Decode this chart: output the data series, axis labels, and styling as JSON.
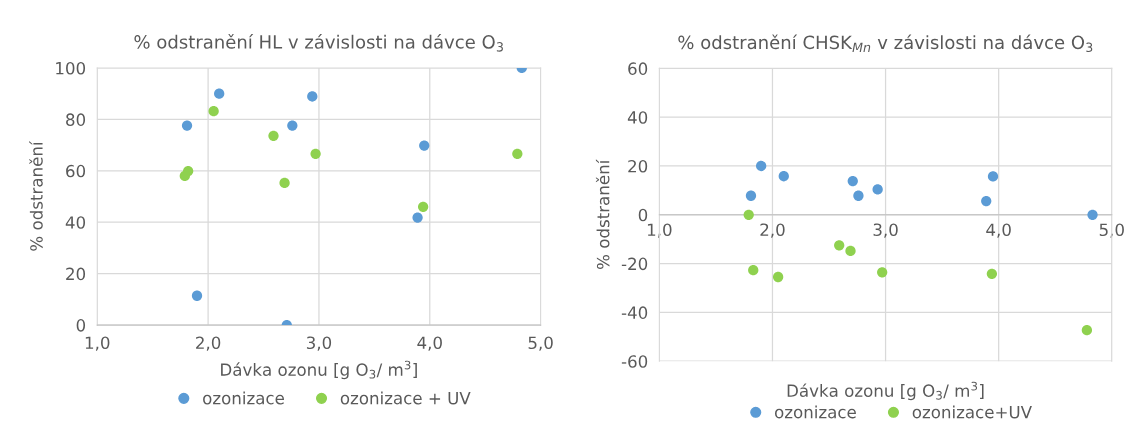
{
  "chart_data": [
    {
      "type": "scatter",
      "title": "% odstranění HL v závislosti na dávce O$_{3}$",
      "xlabel": "Dávka ozonu [g O$_{3}$/ m$^{3}$]",
      "ylabel": "% odstranění",
      "xlim": [
        1,
        5
      ],
      "xticks": [
        {
          "value": 1,
          "label": "1,0"
        },
        {
          "value": 2,
          "label": "2,0"
        },
        {
          "value": 3,
          "label": "3,0"
        },
        {
          "value": 4,
          "label": "4,0"
        },
        {
          "value": 5,
          "label": "5,0"
        }
      ],
      "ylim": [
        0,
        100
      ],
      "yticks": [
        0,
        20,
        40,
        60,
        80,
        100
      ],
      "grid": true,
      "legend": "bottom",
      "marker": "circle",
      "series": [
        {
          "name": "ozonizace",
          "color": "#5b9bd5",
          "x": [
            1.81,
            2.1,
            2.94,
            2.76,
            3.95,
            3.89,
            1.9,
            2.71,
            4.83
          ],
          "values": [
            77.6,
            90,
            88.9,
            77.6,
            69.8,
            41.8,
            11.4,
            0,
            100
          ]
        },
        {
          "name": "ozonizace + UV",
          "color": "#8fd14f",
          "x": [
            2.05,
            2.59,
            2.97,
            4.79,
            1.82,
            1.79,
            2.69,
            3.94
          ],
          "values": [
            83.2,
            73.6,
            66.6,
            66.6,
            59.9,
            58,
            55.3,
            46
          ]
        }
      ]
    },
    {
      "type": "scatter",
      "title": "% odstranění CHSK$_{Mn}$ v závislosti na dávce O$_{3}$",
      "xlabel": "Dávka ozonu [g O$_{3}$/ m$^{3}$]",
      "ylabel": "% odstranění",
      "xlim": [
        1,
        5
      ],
      "xticks": [
        {
          "value": 1,
          "label": "1,0"
        },
        {
          "value": 2,
          "label": "2,0"
        },
        {
          "value": 3,
          "label": "3,0"
        },
        {
          "value": 4,
          "label": "4,0"
        },
        {
          "value": 5,
          "label": "5,0"
        }
      ],
      "ylim": [
        -60,
        60
      ],
      "yticks": [
        -60,
        -40,
        -20,
        0,
        20,
        40,
        60
      ],
      "grid": true,
      "legend": "bottom",
      "marker": "circle",
      "series": [
        {
          "name": "ozonizace",
          "color": "#5b9bd5",
          "x": [
            1.81,
            1.9,
            2.1,
            2.71,
            2.76,
            2.93,
            3.95,
            3.89,
            4.83
          ],
          "values": [
            7.8,
            20,
            15.8,
            13.8,
            7.8,
            10.4,
            15.7,
            5.6,
            0
          ]
        },
        {
          "name": "ozonizace+UV",
          "color": "#8fd14f",
          "x": [
            1.79,
            1.83,
            2.05,
            2.59,
            2.69,
            2.97,
            3.94,
            4.78
          ],
          "values": [
            0,
            -22.7,
            -25.5,
            -12.5,
            -14.8,
            -23.6,
            -24.2,
            -47.3
          ]
        }
      ]
    }
  ]
}
